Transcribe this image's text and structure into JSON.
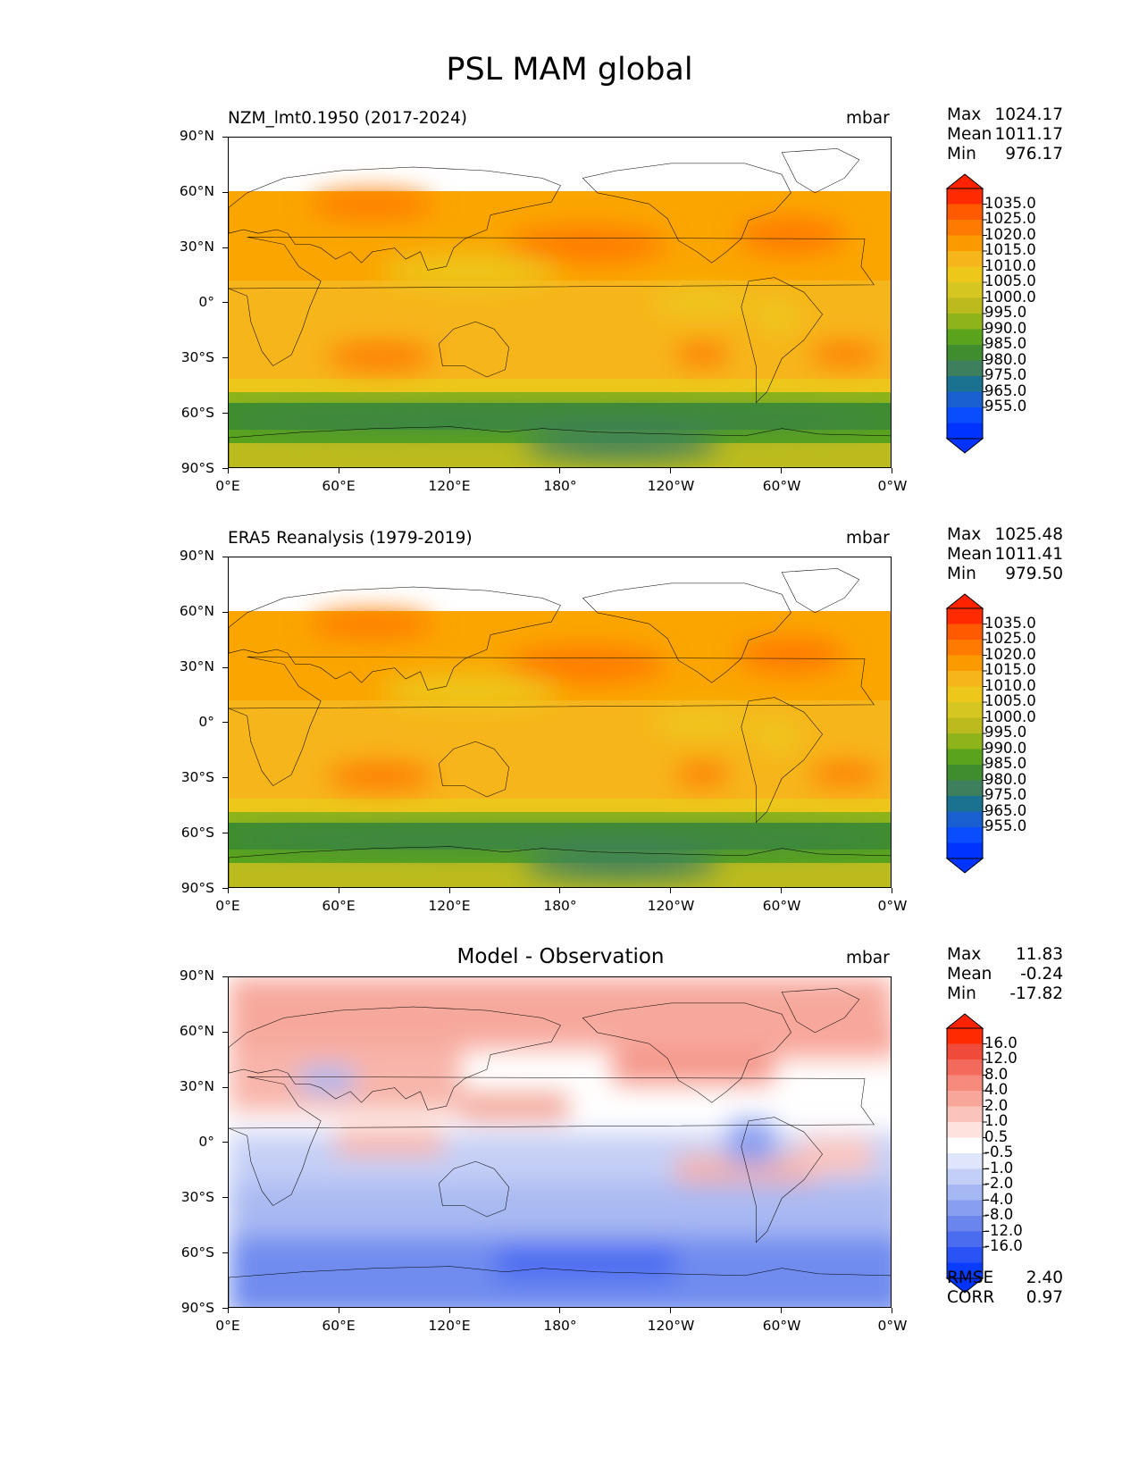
{
  "figure": {
    "title": "PSL MAM global"
  },
  "axes": {
    "lat_labels": [
      "90°N",
      "60°N",
      "30°N",
      "0°",
      "30°S",
      "60°S",
      "90°S"
    ],
    "lon_labels": [
      "0°E",
      "60°E",
      "120°E",
      "180°",
      "120°W",
      "60°W",
      "0°W"
    ]
  },
  "panels": [
    {
      "name": "model",
      "left_title": "NZM_lmt0.1950 (2017-2024)",
      "center_title": "",
      "units": "mbar",
      "stats": {
        "max_label": "Max",
        "max": "1024.17",
        "mean_label": "Mean",
        "mean": "1011.17",
        "min_label": "Min",
        "min": "976.17"
      },
      "colorbar": {
        "ticks": [
          "1035.0",
          "1025.0",
          "1020.0",
          "1015.0",
          "1010.0",
          "1005.0",
          "1000.0",
          "995.0",
          "990.0",
          "985.0",
          "980.0",
          "975.0",
          "965.0",
          "955.0"
        ],
        "colors": [
          "#ff2a00",
          "#ff5a00",
          "#ff7a00",
          "#fb9a00",
          "#f7b51c",
          "#edc71a",
          "#d6c621",
          "#bcbb1e",
          "#8fb31a",
          "#5aa31c",
          "#3f8d2e",
          "#3e7f5e",
          "#1a7290",
          "#1a5fd0",
          "#0a4cff",
          "#0033ff"
        ],
        "extend_top_color": "#ff2200",
        "extend_bottom_color": "#0033ff"
      },
      "metrics": null
    },
    {
      "name": "obs",
      "left_title": "ERA5 Reanalysis (1979-2019)",
      "center_title": "",
      "units": "mbar",
      "stats": {
        "max_label": "Max",
        "max": "1025.48",
        "mean_label": "Mean",
        "mean": "1011.41",
        "min_label": "Min",
        "min": "979.50"
      },
      "colorbar": {
        "ticks": [
          "1035.0",
          "1025.0",
          "1020.0",
          "1015.0",
          "1010.0",
          "1005.0",
          "1000.0",
          "995.0",
          "990.0",
          "985.0",
          "980.0",
          "975.0",
          "965.0",
          "955.0"
        ],
        "colors": [
          "#ff2a00",
          "#ff5a00",
          "#ff7a00",
          "#fb9a00",
          "#f7b51c",
          "#edc71a",
          "#d6c621",
          "#bcbb1e",
          "#8fb31a",
          "#5aa31c",
          "#3f8d2e",
          "#3e7f5e",
          "#1a7290",
          "#1a5fd0",
          "#0a4cff",
          "#0033ff"
        ],
        "extend_top_color": "#ff2200",
        "extend_bottom_color": "#0033ff"
      },
      "metrics": null
    },
    {
      "name": "diff",
      "left_title": "",
      "center_title": "Model - Observation",
      "units": "mbar",
      "stats": {
        "max_label": "Max",
        "max": "11.83",
        "mean_label": "Mean",
        "mean": "-0.24",
        "min_label": "Min",
        "min": "-17.82"
      },
      "colorbar": {
        "ticks": [
          "16.0",
          "12.0",
          "8.0",
          "4.0",
          "2.0",
          "1.0",
          "0.5",
          "-0.5",
          "-1.0",
          "-2.0",
          "-4.0",
          "-8.0",
          "-12.0",
          "-16.0"
        ],
        "colors": [
          "#ff2a00",
          "#f04a3a",
          "#f36a5c",
          "#f58a7c",
          "#f8a69a",
          "#fbc4bb",
          "#fde2de",
          "#ffffff",
          "#dfe6fb",
          "#c3cff7",
          "#a6b8f3",
          "#889ef0",
          "#6a85ee",
          "#4c6cf0",
          "#2a52f5",
          "#0a3cff"
        ],
        "extend_top_color": "#ff2200",
        "extend_bottom_color": "#0033ff"
      },
      "metrics": {
        "rmse_label": "RMSE",
        "rmse": "2.40",
        "corr_label": "CORR",
        "corr": "0.97"
      }
    }
  ]
}
